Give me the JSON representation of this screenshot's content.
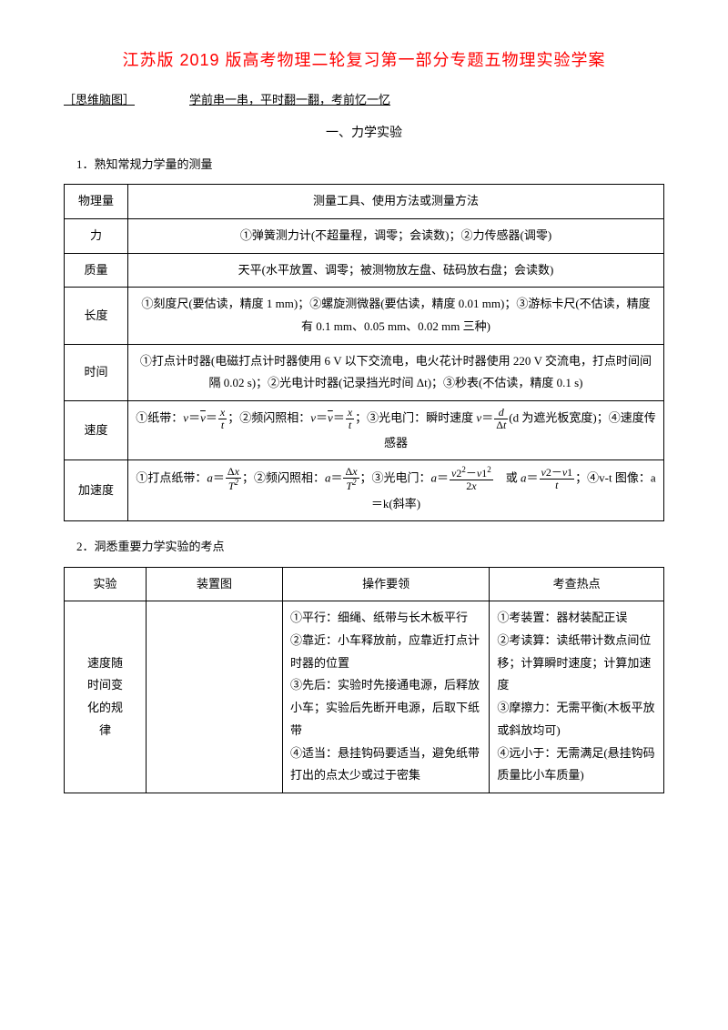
{
  "title": "江苏版 2019 版高考物理二轮复习第一部分专题五物理实验学案",
  "subtitle_left": "［思维脑图］",
  "subtitle_right": "学前串一串，平时翻一翻，考前忆一忆",
  "section1_heading": "一、力学实验",
  "list1": "1．熟知常规力学量的测量",
  "list2": "2．洞悉重要力学实验的考点",
  "table1": {
    "header": {
      "col1": "物理量",
      "col2": "测量工具、使用方法或测量方法"
    },
    "rows": [
      {
        "q": "力",
        "a": "①弹簧测力计(不超量程，调零；会读数)；②力传感器(调零)"
      },
      {
        "q": "质量",
        "a": "天平(水平放置、调零；被测物放左盘、砝码放右盘；会读数)"
      },
      {
        "q": "长度",
        "a": "①刻度尺(要估读，精度 1 mm)；②螺旋测微器(要估读，精度 0.01 mm)；③游标卡尺(不估读，精度有 0.1 mm、0.05 mm、0.02 mm 三种)"
      },
      {
        "q": "时间",
        "a": "①打点计时器(电磁打点计时器使用 6 V 以下交流电，电火花计时器使用 220 V 交流电，打点时间间隔 0.02 s)；②光电计时器(记录挡光时间 Δt)；③秒表(不估读，精度 0.1 s)"
      },
      {
        "q": "速度"
      },
      {
        "q": "加速度"
      }
    ],
    "speed_text1": "①纸带：",
    "speed_text2": "；②频闪照相：",
    "speed_text3": "；③光电门：瞬时速度 ",
    "speed_text4": "(d 为遮光板宽度)；④速度传感器",
    "accel_text1": "①打点纸带：",
    "accel_text2": "；②频闪照相：",
    "accel_text3": "；③光电门：",
    "accel_text4": "　或 ",
    "accel_text5": "；④v-t 图像：a＝k(斜率)"
  },
  "table2": {
    "header": {
      "c1": "实验",
      "c2": "装置图",
      "c3": "操作要领",
      "c4": "考查热点"
    },
    "row1": {
      "exp": "速度随\n时间变\n化的规\n律",
      "ops": "①平行：细绳、纸带与长木板平行\n②靠近：小车释放前，应靠近打点计时器的位置\n③先后：实验时先接通电源，后释放小车；实验后先断开电源，后取下纸带\n④适当：悬挂钩码要适当，避免纸带打出的点太少或过于密集",
      "hot": "①考装置：器材装配正误\n②考读算：读纸带计数点间位移；计算瞬时速度；计算加速度\n③摩擦力：无需平衡(木板平放或斜放均可)\n④远小于：无需满足(悬挂钩码质量比小车质量)"
    }
  }
}
